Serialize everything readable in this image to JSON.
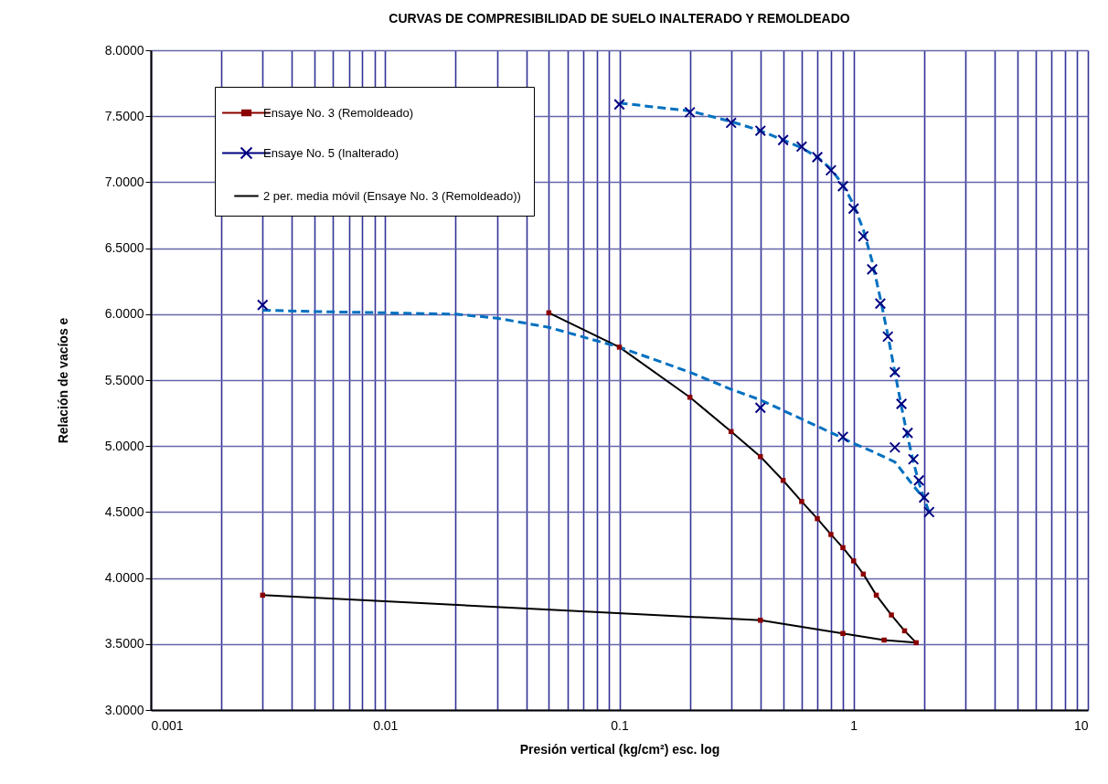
{
  "chart_data": {
    "type": "line",
    "title": "CURVAS DE COMPRESIBILIDAD DE SUELO INALTERADO Y REMOLDEADO",
    "xlabel": "Presión vertical (kg/cm²) esc. log",
    "ylabel": "Relación de vacíos e",
    "log": "x",
    "grid": true,
    "legend": "top left",
    "xlim": [
      0.001,
      10
    ],
    "ylim": [
      3,
      8
    ],
    "xticks": [
      0.001,
      {
        "value": 0.002,
        "label": null
      },
      {
        "value": 0.003,
        "label": null
      },
      {
        "value": 0.004,
        "label": null
      },
      {
        "value": 0.005,
        "label": null
      },
      {
        "value": 0.006,
        "label": null
      },
      {
        "value": 0.007,
        "label": null
      },
      {
        "value": 0.008,
        "label": null
      },
      {
        "value": 0.009,
        "label": null
      },
      0.01,
      {
        "value": 0.02,
        "label": null
      },
      {
        "value": 0.03,
        "label": null
      },
      {
        "value": 0.04,
        "label": null
      },
      {
        "value": 0.05,
        "label": null
      },
      {
        "value": 0.06,
        "label": null
      },
      {
        "value": 0.07,
        "label": null
      },
      {
        "value": 0.08,
        "label": null
      },
      {
        "value": 0.09,
        "label": null
      },
      0.1,
      {
        "value": 0.2,
        "label": null
      },
      {
        "value": 0.3,
        "label": null
      },
      {
        "value": 0.4,
        "label": null
      },
      {
        "value": 0.5,
        "label": null
      },
      {
        "value": 0.6,
        "label": null
      },
      {
        "value": 0.7,
        "label": null
      },
      {
        "value": 0.8,
        "label": null
      },
      {
        "value": 0.9,
        "label": null
      },
      1,
      {
        "value": 2,
        "label": null
      },
      {
        "value": 3,
        "label": null
      },
      {
        "value": 4,
        "label": null
      },
      {
        "value": 5,
        "label": null
      },
      {
        "value": 6,
        "label": null
      },
      {
        "value": 7,
        "label": null
      },
      {
        "value": 8,
        "label": null
      },
      {
        "value": 9,
        "label": null
      },
      10
    ],
    "yticks": [
      {
        "value": 3,
        "label": "3.0000"
      },
      {
        "value": 3.5,
        "label": "3.5000"
      },
      {
        "value": 4,
        "label": "4.0000"
      },
      {
        "value": 4.5,
        "label": "4.5000"
      },
      {
        "value": 5,
        "label": "5.0000"
      },
      {
        "value": 5.5,
        "label": "5.5000"
      },
      {
        "value": 6,
        "label": "6.0000"
      },
      {
        "value": 6.5,
        "label": "6.5000"
      },
      {
        "value": 7,
        "label": "7.0000"
      },
      {
        "value": 7.5,
        "label": "7.5000"
      },
      {
        "value": 8,
        "label": "8.0000"
      }
    ],
    "series": [
      {
        "type": "scatter",
        "name": "Ensaye No. 3 (Remoldeado)",
        "color": "#8b0000",
        "marker": "square",
        "x": [
          0.05,
          0.1,
          0.2,
          0.3,
          0.4,
          0.5,
          0.6,
          0.7,
          0.8,
          0.9,
          1.0,
          1.1,
          1.25,
          1.45,
          1.65,
          1.85,
          1.35,
          0.9,
          0.4,
          0.003
        ],
        "values": [
          6.01,
          5.75,
          5.37,
          5.11,
          4.92,
          4.74,
          4.58,
          4.45,
          4.33,
          4.23,
          4.13,
          4.03,
          3.87,
          3.72,
          3.6,
          3.51,
          3.53,
          3.58,
          3.68,
          3.87
        ]
      },
      {
        "type": "scatter",
        "name": "Ensaye No. 5 (Inalterado)",
        "color": "#000080",
        "marker": "cross",
        "x": [
          0.003,
          0.1,
          0.2,
          0.3,
          0.4,
          0.5,
          0.6,
          0.7,
          0.8,
          0.9,
          1.0,
          1.1,
          1.2,
          1.3,
          1.4,
          1.5,
          1.6,
          1.7,
          1.8,
          1.9,
          2.0,
          2.1,
          0.4,
          0.9,
          1.5
        ],
        "values": [
          6.07,
          7.59,
          7.53,
          7.45,
          7.39,
          7.32,
          7.27,
          7.19,
          7.09,
          6.97,
          6.8,
          6.59,
          6.34,
          6.08,
          5.83,
          5.56,
          5.32,
          5.1,
          4.9,
          4.74,
          4.61,
          4.5,
          5.29,
          5.07,
          4.99
        ]
      },
      {
        "name": "2 per. media móvil (Ensaye No. 3 (Remoldeado))",
        "color": "#000000",
        "line_style": "solid",
        "marker": "none",
        "x": [
          0.05,
          0.1,
          0.2,
          0.3,
          0.4,
          0.5,
          0.6,
          0.7,
          0.8,
          0.9,
          1.0,
          1.1,
          1.25,
          1.45,
          1.65,
          1.85,
          1.35,
          0.9,
          0.4,
          0.003
        ],
        "values": [
          6.01,
          5.75,
          5.37,
          5.11,
          4.92,
          4.74,
          4.58,
          4.45,
          4.33,
          4.23,
          4.13,
          4.03,
          3.87,
          3.72,
          3.6,
          3.51,
          3.53,
          3.58,
          3.68,
          3.87
        ]
      },
      {
        "color": "#0070c0",
        "line_style": "dashed",
        "marker": "none",
        "x": [
          0.1,
          0.2,
          0.3,
          0.4,
          0.5,
          0.6,
          0.7,
          0.8,
          0.9,
          1.0,
          1.1,
          1.2,
          1.3,
          1.4,
          1.5,
          1.6,
          1.7,
          1.8,
          1.9,
          2.0,
          2.1
        ],
        "values": [
          7.6,
          7.54,
          7.46,
          7.39,
          7.32,
          7.26,
          7.19,
          7.1,
          6.98,
          6.83,
          6.64,
          6.4,
          6.12,
          5.84,
          5.56,
          5.3,
          5.07,
          4.88,
          4.72,
          4.6,
          4.5
        ]
      },
      {
        "color": "#0070c0",
        "line_style": "dashed",
        "marker": "none",
        "x": [
          0.003,
          0.005,
          0.01,
          0.02,
          0.03,
          0.05,
          0.1,
          0.2,
          0.3,
          0.4,
          0.5,
          0.7,
          0.9,
          1.0,
          1.2,
          1.5,
          1.8,
          2.0
        ],
        "values": [
          6.03,
          6.02,
          6.01,
          6.0,
          5.97,
          5.9,
          5.75,
          5.56,
          5.43,
          5.35,
          5.27,
          5.15,
          5.06,
          5.02,
          4.96,
          4.88,
          4.7,
          4.6
        ]
      }
    ]
  }
}
